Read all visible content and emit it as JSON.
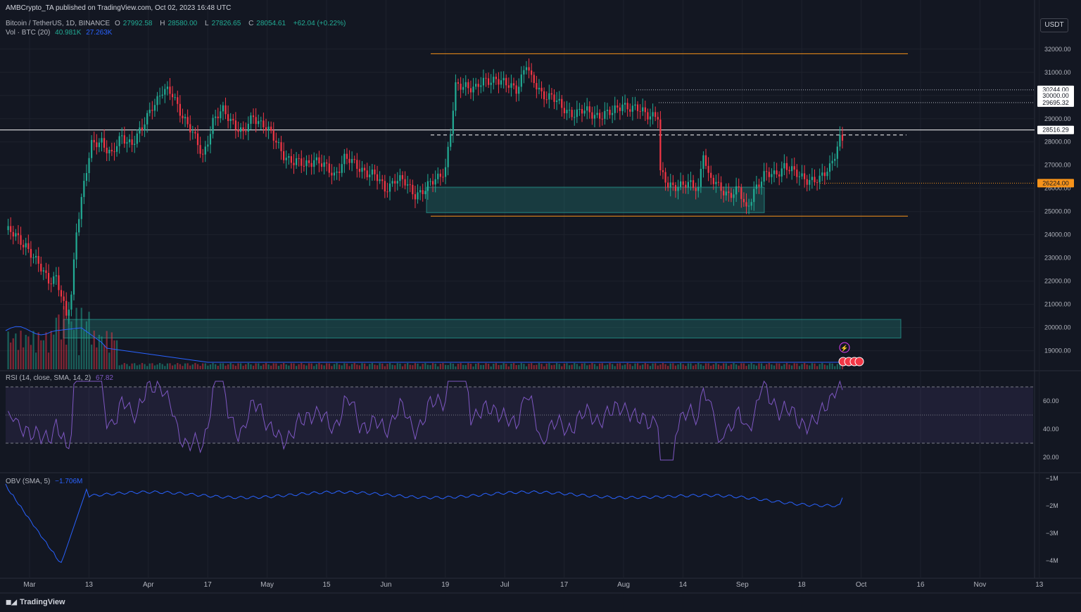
{
  "meta_line": "AMBCrypto_TA published on TradingView.com, Oct 02, 2023 16:48 UTC",
  "symbol": {
    "name": "Bitcoin / TetherUS, 1D, BINANCE",
    "o_label": "O",
    "o": "27992.58",
    "h_label": "H",
    "h": "28580.00",
    "l_label": "L",
    "l": "27826.65",
    "c_label": "C",
    "c": "28054.61",
    "change": "+62.04 (+0.22%)"
  },
  "volume": {
    "label": "Vol · BTC (20)",
    "v1": "40.981K",
    "v2": "27.263K"
  },
  "rsi": {
    "label": "RSI (14, close, SMA, 14, 2)",
    "value": "67.82"
  },
  "obv": {
    "label": "OBV (SMA, 5)",
    "value": "−1.706M"
  },
  "currency_button": "USDT",
  "brand": "TradingView",
  "colors": {
    "up": "#22ab94",
    "down": "#f23645",
    "orange": "#f7931a",
    "zone": "#26a69a",
    "rsi": "#7e57c2",
    "obv": "#2962ff",
    "bg": "#131722"
  },
  "chart_data": {
    "type": "candlestick",
    "x_ticks": [
      "Mar",
      "13",
      "Apr",
      "17",
      "May",
      "15",
      "Jun",
      "19",
      "Jul",
      "17",
      "Aug",
      "14",
      "Sep",
      "18",
      "Oct",
      "16",
      "Nov",
      "13"
    ],
    "price_ticks": [
      "32000.00",
      "31000.00",
      "30000.00",
      "29000.00",
      "28000.00",
      "27000.00",
      "26000.00",
      "25000.00",
      "24000.00",
      "23000.00",
      "22000.00",
      "21000.00",
      "20000.00",
      "19000.00"
    ],
    "price_ylim": [
      18200,
      32600
    ],
    "price_labels": [
      {
        "text": "30244.00",
        "value": 30244
      },
      {
        "text": "30000.00",
        "value": 30000
      },
      {
        "text": "29695.32",
        "value": 29695.32
      },
      {
        "text": "28516.29",
        "value": 28516.29
      },
      {
        "text": "26224.00",
        "value": 26224
      }
    ],
    "horizontal_levels": [
      {
        "value": 31800,
        "style": "orange"
      },
      {
        "value": 28516.29,
        "style": "white"
      },
      {
        "value": 28300,
        "style": "dashed"
      },
      {
        "value": 30244,
        "style": "dotted"
      },
      {
        "value": 29695.32,
        "style": "dotted"
      },
      {
        "value": 26224,
        "style": "orange-dotted"
      },
      {
        "value": 24800,
        "style": "orange"
      }
    ],
    "zones": [
      {
        "from": 24950,
        "to": 26050
      },
      {
        "from": 19550,
        "to": 20350
      }
    ],
    "rsi_ticks": [
      "60.00",
      "40.00",
      "20.00"
    ],
    "rsi_band": [
      30,
      70
    ],
    "obv_ticks": [
      "−1M",
      "−2M",
      "−3M",
      "−4M"
    ],
    "close_keypoints": [
      [
        0,
        24200
      ],
      [
        4,
        23900
      ],
      [
        8,
        23600
      ],
      [
        12,
        22800
      ],
      [
        14,
        22500
      ],
      [
        17,
        22100
      ],
      [
        20,
        22200
      ],
      [
        22,
        21300
      ],
      [
        24,
        20400
      ],
      [
        26,
        21400
      ],
      [
        28,
        24300
      ],
      [
        31,
        26200
      ],
      [
        34,
        27800
      ],
      [
        38,
        28100
      ],
      [
        42,
        27400
      ],
      [
        46,
        28200
      ],
      [
        50,
        28000
      ],
      [
        54,
        28500
      ],
      [
        58,
        29600
      ],
      [
        62,
        30200
      ],
      [
        66,
        30000
      ],
      [
        70,
        29200
      ],
      [
        74,
        28300
      ],
      [
        78,
        27400
      ],
      [
        82,
        28900
      ],
      [
        86,
        29300
      ],
      [
        90,
        28900
      ],
      [
        94,
        28300
      ],
      [
        98,
        29100
      ],
      [
        102,
        28800
      ],
      [
        106,
        28100
      ],
      [
        110,
        27500
      ],
      [
        114,
        27100
      ],
      [
        118,
        27000
      ],
      [
        122,
        27300
      ],
      [
        126,
        26900
      ],
      [
        130,
        26600
      ],
      [
        134,
        27300
      ],
      [
        138,
        27000
      ],
      [
        142,
        26800
      ],
      [
        146,
        26500
      ],
      [
        150,
        26000
      ],
      [
        154,
        26400
      ],
      [
        158,
        26200
      ],
      [
        162,
        25800
      ],
      [
        166,
        25900
      ],
      [
        170,
        26400
      ],
      [
        174,
        26900
      ],
      [
        176,
        28400
      ],
      [
        178,
        30300
      ],
      [
        182,
        30500
      ],
      [
        186,
        30300
      ],
      [
        190,
        30600
      ],
      [
        194,
        30800
      ],
      [
        198,
        30400
      ],
      [
        202,
        30300
      ],
      [
        206,
        31400
      ],
      [
        208,
        30600
      ],
      [
        212,
        30100
      ],
      [
        216,
        30000
      ],
      [
        220,
        29400
      ],
      [
        224,
        29300
      ],
      [
        228,
        29300
      ],
      [
        232,
        29200
      ],
      [
        236,
        29200
      ],
      [
        240,
        29200
      ],
      [
        244,
        29700
      ],
      [
        248,
        29400
      ],
      [
        252,
        29300
      ],
      [
        256,
        29200
      ],
      [
        258,
        29100
      ],
      [
        259,
        26600
      ],
      [
        262,
        26100
      ],
      [
        266,
        26200
      ],
      [
        270,
        26100
      ],
      [
        274,
        26000
      ],
      [
        276,
        27700
      ],
      [
        278,
        26500
      ],
      [
        282,
        26000
      ],
      [
        286,
        25800
      ],
      [
        290,
        25900
      ],
      [
        293,
        25000
      ],
      [
        296,
        26000
      ],
      [
        300,
        26500
      ],
      [
        304,
        26600
      ],
      [
        308,
        27000
      ],
      [
        312,
        26600
      ],
      [
        316,
        26500
      ],
      [
        320,
        26300
      ],
      [
        322,
        26300
      ],
      [
        326,
        27000
      ],
      [
        330,
        28100
      ],
      [
        331,
        28054
      ]
    ],
    "total_days": 331
  }
}
